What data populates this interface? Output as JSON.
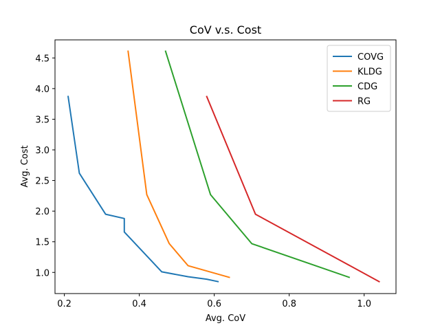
{
  "chart_data": {
    "type": "line",
    "title": "CoV v.s. Cost",
    "xlabel": "Avg. CoV",
    "ylabel": "Avg. Cost",
    "xlim": [
      0.175,
      1.085
    ],
    "ylim": [
      0.655,
      4.795
    ],
    "xticks": [
      0.2,
      0.4,
      0.6,
      0.8,
      1.0
    ],
    "xtick_labels": [
      "0.2",
      "0.4",
      "0.6",
      "0.8",
      "1.0"
    ],
    "yticks": [
      1.0,
      1.5,
      2.0,
      2.5,
      3.0,
      3.5,
      4.0,
      4.5
    ],
    "ytick_labels": [
      "1.0",
      "1.5",
      "2.0",
      "2.5",
      "3.0",
      "3.5",
      "4.0",
      "4.5"
    ],
    "grid": false,
    "legend_position": "top-right",
    "series": [
      {
        "name": "COVG",
        "color": "#1f77b4",
        "points": [
          [
            0.21,
            3.87
          ],
          [
            0.24,
            2.62
          ],
          [
            0.31,
            1.95
          ],
          [
            0.36,
            1.88
          ],
          [
            0.36,
            1.66
          ],
          [
            0.46,
            1.01
          ],
          [
            0.53,
            0.93
          ],
          [
            0.58,
            0.89
          ],
          [
            0.61,
            0.85
          ]
        ]
      },
      {
        "name": "KLDG",
        "color": "#ff7f0e",
        "points": [
          [
            0.37,
            4.61
          ],
          [
            0.42,
            2.27
          ],
          [
            0.48,
            1.47
          ],
          [
            0.53,
            1.11
          ],
          [
            0.64,
            0.92
          ]
        ]
      },
      {
        "name": "CDG",
        "color": "#2ca02c",
        "points": [
          [
            0.47,
            4.61
          ],
          [
            0.59,
            2.27
          ],
          [
            0.7,
            1.47
          ],
          [
            0.96,
            0.92
          ]
        ]
      },
      {
        "name": "RG",
        "color": "#d62728",
        "points": [
          [
            0.58,
            3.87
          ],
          [
            0.71,
            1.95
          ],
          [
            1.04,
            0.85
          ]
        ]
      }
    ]
  }
}
